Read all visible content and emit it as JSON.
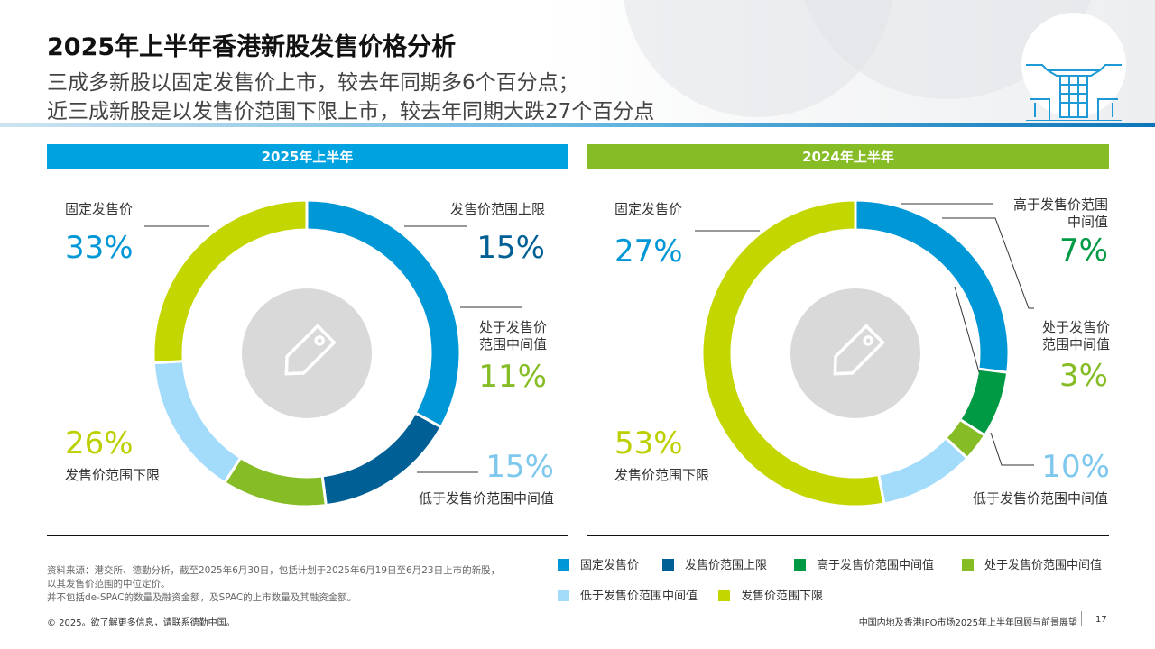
{
  "title": "2025年上半年香港新股发售价格分析",
  "subtitle_lines": [
    "三成多新股以固定发售价上市，较去年同期多6个百分点；",
    "近三成新股是以发售价范围下限上市，较去年同期大跌27个百分点"
  ],
  "panels": [
    {
      "header": "2025年上半年",
      "header_color": "#00a3e0"
    },
    {
      "header": "2024年上半年",
      "header_color": "#86bc25"
    }
  ],
  "chart_data": [
    {
      "type": "pie",
      "title": "2025年上半年",
      "unit": "%",
      "slices": [
        {
          "label": "固定发售价",
          "value": 33,
          "display": "33%",
          "color": "#0097d6"
        },
        {
          "label": "发售价范围上限",
          "value": 15,
          "display": "15%",
          "color": "#005f94"
        },
        {
          "label": "处于发售价范围中间值",
          "value": 11,
          "display": "11%",
          "color": "#86bc25"
        },
        {
          "label": "低于发售价范围中间值",
          "value": 15,
          "display": "15%",
          "color": "#a3dcfb"
        },
        {
          "label": "发售价范围下限",
          "value": 26,
          "display": "26%",
          "color": "#c4d600"
        }
      ]
    },
    {
      "type": "pie",
      "title": "2024年上半年",
      "unit": "%",
      "slices": [
        {
          "label": "固定发售价",
          "value": 27,
          "display": "27%",
          "color": "#0097d6"
        },
        {
          "label": "高于发售价范围中间值",
          "value": 7,
          "display": "7%",
          "color": "#009a44"
        },
        {
          "label": "处于发售价范围中间值",
          "value": 3,
          "display": "3%",
          "color": "#86bc25"
        },
        {
          "label": "低于发售价范围中间值",
          "value": 10,
          "display": "10%",
          "color": "#a3dcfb"
        },
        {
          "label": "发售价范围下限",
          "value": 53,
          "display": "53%",
          "color": "#c4d600"
        }
      ]
    }
  ],
  "label_lines": {
    "c1_upper": "发售价范围上限",
    "c1_mid1": "处于发售价",
    "c1_mid2": "范围中间值",
    "c2_high1": "高于发售价范围",
    "c2_high2": "中间值",
    "c2_mid1": "处于发售价",
    "c2_mid2": "范围中间值"
  },
  "legend": [
    {
      "label": "固定发售价",
      "color": "#0097d6"
    },
    {
      "label": "发售价范围上限",
      "color": "#005f94"
    },
    {
      "label": "高于发售价范围中间值",
      "color": "#009a44"
    },
    {
      "label": "处于发售价范围中间值",
      "color": "#86bc25"
    },
    {
      "label": "低于发售价范围中间值",
      "color": "#a3dcfb"
    },
    {
      "label": "发售价范围下限",
      "color": "#c4d600"
    }
  ],
  "source_lines": [
    "资料来源：港交所、德勤分析，截至2025年6月30日，包括计划于2025年6月19日至6月23日上市的新股，",
    "以其发售价范围的中位定价。",
    "并不包括de-SPAC的数量及融资金额，及SPAC的上市数量及其融资金额。"
  ],
  "footer": {
    "copyright": "© 2025。欲了解更多信息，请联系德勤中国。",
    "report": "中国内地及香港IPO市场2025年上半年回顾与前景展望",
    "page": "17"
  },
  "colors": {
    "center_circle": "#d9d9d9",
    "leader_line": "#333333"
  }
}
